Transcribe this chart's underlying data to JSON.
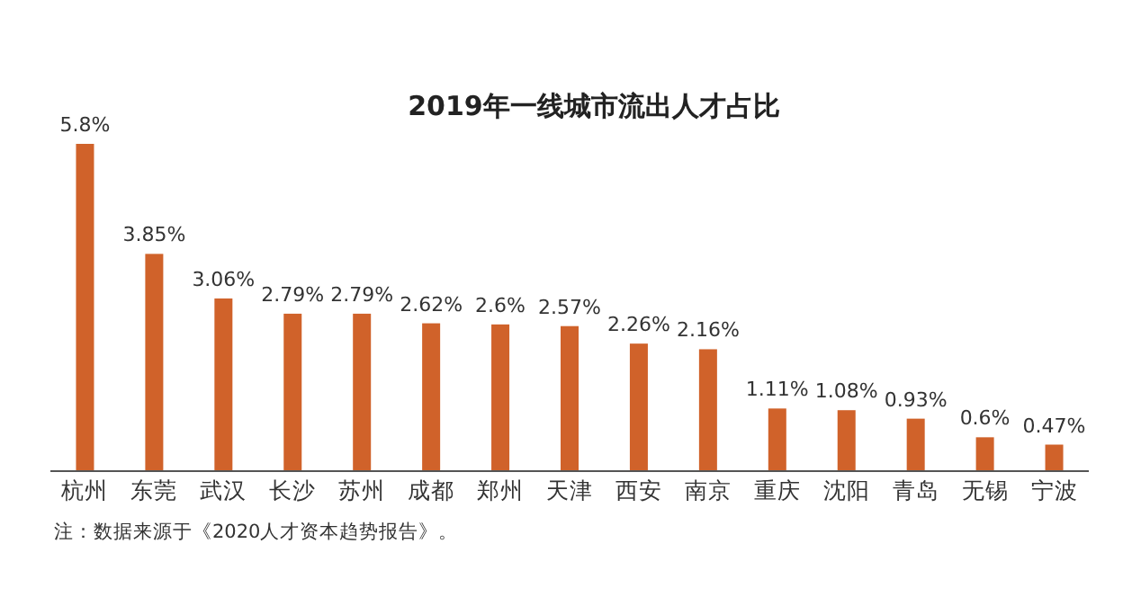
{
  "chart_data": {
    "type": "bar",
    "title": "2019年一线城市流出人才占比",
    "categories": [
      "杭州",
      "东莞",
      "武汉",
      "长沙",
      "苏州",
      "成都",
      "郑州",
      "天津",
      "西安",
      "南京",
      "重庆",
      "沈阳",
      "青岛",
      "无锡",
      "宁波"
    ],
    "values": [
      5.8,
      3.85,
      3.06,
      2.79,
      2.79,
      2.62,
      2.6,
      2.57,
      2.26,
      2.16,
      1.11,
      1.08,
      0.93,
      0.6,
      0.47
    ],
    "value_labels": [
      "5.8%",
      "3.85%",
      "3.06%",
      "2.79%",
      "2.79%",
      "2.62%",
      "2.6%",
      "2.57%",
      "2.26%",
      "2.16%",
      "1.11%",
      "1.08%",
      "0.93%",
      "0.6%",
      "0.47%"
    ],
    "color": "#d0622a",
    "relative": false,
    "annotations": [
      "注：数据来源于《2020人才资本趋势报告》。"
    ]
  }
}
